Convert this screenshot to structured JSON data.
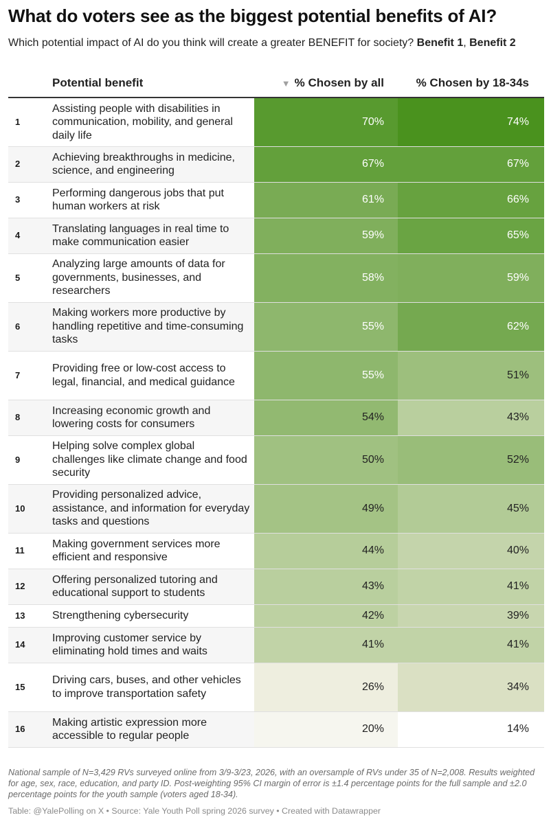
{
  "header": {
    "title": "What do voters see as the biggest potential benefits of AI?",
    "subtitle_prefix": "Which potential impact of AI do you think will create a greater BENEFIT for society? ",
    "subtitle_b1": "Benefit 1",
    "subtitle_sep": ", ",
    "subtitle_b2": "Benefit 2"
  },
  "chart_data": {
    "type": "table",
    "columns": [
      "Potential benefit",
      "% Chosen by all",
      "% Chosen by 18-34s"
    ],
    "sort_indicator": "▼",
    "rows": [
      {
        "rank": "1",
        "benefit": "Assisting people with disabilities in communication, mobility, and general daily life",
        "all": 70,
        "youth": 74
      },
      {
        "rank": "2",
        "benefit": "Achieving breakthroughs in medicine, science, and engineering",
        "all": 67,
        "youth": 67
      },
      {
        "rank": "3",
        "benefit": "Performing dangerous jobs that put human workers at risk",
        "all": 61,
        "youth": 66
      },
      {
        "rank": "4",
        "benefit": "Translating languages in real time to make communication easier",
        "all": 59,
        "youth": 65
      },
      {
        "rank": "5",
        "benefit": "Analyzing large amounts of data for governments, businesses, and researchers",
        "all": 58,
        "youth": 59
      },
      {
        "rank": "6",
        "benefit": "Making workers more productive by handling repetitive and time-consuming tasks",
        "all": 55,
        "youth": 62
      },
      {
        "rank": "7",
        "benefit": "Providing free or low-cost access to legal, financial, and medical guidance",
        "all": 55,
        "youth": 51
      },
      {
        "rank": "8",
        "benefit": "Increasing economic growth and lowering costs for consumers",
        "all": 54,
        "youth": 43
      },
      {
        "rank": "9",
        "benefit": "Helping solve complex global challenges like climate change and food security",
        "all": 50,
        "youth": 52
      },
      {
        "rank": "10",
        "benefit": "Providing personalized advice, assistance, and information for everyday tasks and questions",
        "all": 49,
        "youth": 45
      },
      {
        "rank": "11",
        "benefit": "Making government services more efficient and responsive",
        "all": 44,
        "youth": 40
      },
      {
        "rank": "12",
        "benefit": "Offering personalized tutoring and educational support to students",
        "all": 43,
        "youth": 41
      },
      {
        "rank": "13",
        "benefit": "Strengthening cybersecurity",
        "all": 42,
        "youth": 39
      },
      {
        "rank": "14",
        "benefit": "Improving customer service by eliminating hold times and waits",
        "all": 41,
        "youth": 41
      },
      {
        "rank": "15",
        "benefit": "Driving cars, buses, and other vehicles to improve transportation safety",
        "all": 26,
        "youth": 34
      },
      {
        "rank": "16",
        "benefit": "Making artistic expression more accessible to regular people",
        "all": 20,
        "youth": 14
      }
    ],
    "value_suffix": "%",
    "color_scale": {
      "low": "#ffffff",
      "mid": "#e8e8d4",
      "high": "#4a921e"
    }
  },
  "footer": {
    "note": "National sample of N=3,429 RVs surveyed online from 3/9-3/23, 2026, with an oversample of RVs under 35 of N=2,008. Results weighted for age, sex, race, education, and party ID. Post-weighting 95% CI margin of error is ±1.4 percentage points for the full sample and ±2.0 percentage points for the youth sample (voters aged 18-34).",
    "credit": "Table: @YalePolling on X • Source: Yale Youth Poll spring 2026 survey • Created with Datawrapper"
  }
}
